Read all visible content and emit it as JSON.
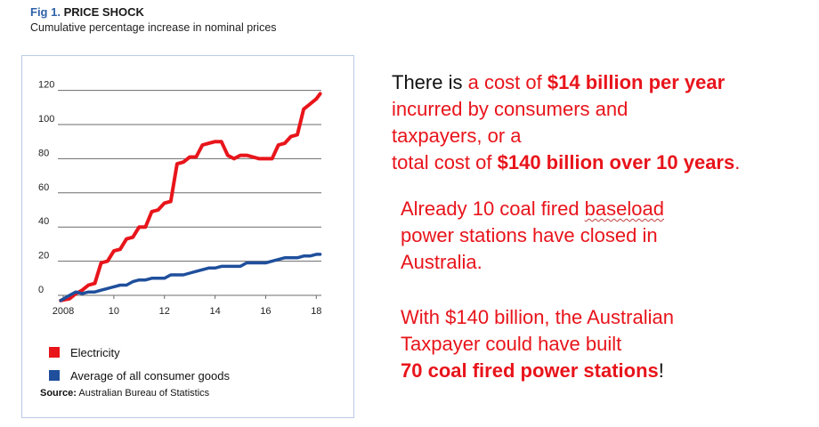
{
  "figure": {
    "fig_number": "Fig 1.",
    "title": "PRICE SHOCK",
    "subtitle": "Cumulative percentage increase in nominal prices",
    "source_label": "Source:",
    "source_text": "Australian Bureau of Statistics"
  },
  "chart_data": {
    "type": "line",
    "xlim": [
      2008,
      2018.2
    ],
    "ylim": [
      0,
      125
    ],
    "y_ticks": [
      0,
      20,
      40,
      60,
      80,
      100,
      120
    ],
    "x_ticks": [
      2008,
      2010,
      2012,
      2014,
      2016,
      2018
    ],
    "x_tick_labels": [
      "2008",
      "10",
      "12",
      "14",
      "16",
      "18"
    ],
    "grid": true,
    "legend_position": "bottom-left",
    "series": [
      {
        "name": "Electricity",
        "color": "#e8151b",
        "points": [
          [
            2007.9,
            -3
          ],
          [
            2008.25,
            -2
          ],
          [
            2008.5,
            1
          ],
          [
            2008.75,
            3
          ],
          [
            2009.0,
            6
          ],
          [
            2009.25,
            7
          ],
          [
            2009.5,
            19
          ],
          [
            2009.75,
            20
          ],
          [
            2010.0,
            26
          ],
          [
            2010.25,
            27
          ],
          [
            2010.5,
            33
          ],
          [
            2010.75,
            34
          ],
          [
            2011.0,
            40
          ],
          [
            2011.25,
            40
          ],
          [
            2011.5,
            49
          ],
          [
            2011.75,
            50
          ],
          [
            2012.0,
            54
          ],
          [
            2012.25,
            55
          ],
          [
            2012.5,
            77
          ],
          [
            2012.75,
            78
          ],
          [
            2013.0,
            81
          ],
          [
            2013.25,
            81
          ],
          [
            2013.5,
            88
          ],
          [
            2013.75,
            89
          ],
          [
            2014.0,
            90
          ],
          [
            2014.25,
            90
          ],
          [
            2014.5,
            82
          ],
          [
            2014.75,
            80
          ],
          [
            2015.0,
            82
          ],
          [
            2015.25,
            82
          ],
          [
            2015.5,
            81
          ],
          [
            2015.75,
            80
          ],
          [
            2016.0,
            80
          ],
          [
            2016.25,
            80
          ],
          [
            2016.5,
            88
          ],
          [
            2016.75,
            89
          ],
          [
            2017.0,
            93
          ],
          [
            2017.25,
            94
          ],
          [
            2017.5,
            109
          ],
          [
            2017.75,
            112
          ],
          [
            2018.0,
            115
          ],
          [
            2018.15,
            118
          ]
        ]
      },
      {
        "name": "Average of all consumer goods",
        "color": "#1f4f9c",
        "points": [
          [
            2007.9,
            -3
          ],
          [
            2008.25,
            0
          ],
          [
            2008.5,
            2
          ],
          [
            2008.75,
            1
          ],
          [
            2009.0,
            2
          ],
          [
            2009.25,
            2
          ],
          [
            2009.5,
            3
          ],
          [
            2009.75,
            4
          ],
          [
            2010.0,
            5
          ],
          [
            2010.25,
            6
          ],
          [
            2010.5,
            6
          ],
          [
            2010.75,
            8
          ],
          [
            2011.0,
            9
          ],
          [
            2011.25,
            9
          ],
          [
            2011.5,
            10
          ],
          [
            2011.75,
            10
          ],
          [
            2012.0,
            10
          ],
          [
            2012.25,
            12
          ],
          [
            2012.5,
            12
          ],
          [
            2012.75,
            12
          ],
          [
            2013.0,
            13
          ],
          [
            2013.25,
            14
          ],
          [
            2013.5,
            15
          ],
          [
            2013.75,
            16
          ],
          [
            2014.0,
            16
          ],
          [
            2014.25,
            17
          ],
          [
            2014.5,
            17
          ],
          [
            2014.75,
            17
          ],
          [
            2015.0,
            17
          ],
          [
            2015.25,
            19
          ],
          [
            2015.5,
            19
          ],
          [
            2015.75,
            19
          ],
          [
            2016.0,
            19
          ],
          [
            2016.25,
            20
          ],
          [
            2016.5,
            21
          ],
          [
            2016.75,
            22
          ],
          [
            2017.0,
            22
          ],
          [
            2017.25,
            22
          ],
          [
            2017.5,
            23
          ],
          [
            2017.75,
            23
          ],
          [
            2018.0,
            24
          ],
          [
            2018.15,
            24
          ]
        ]
      }
    ]
  },
  "message": {
    "p1": {
      "a": "There is",
      "b": " a cost of ",
      "c": "$14 billion per year",
      "d": "incurred by consumers and",
      "e": "taxpayers, or a",
      "f": "total cost of ",
      "g": "$140 billion over 10 years",
      "h": "."
    },
    "p2": {
      "a": "Already 10 coal fired ",
      "b": "baseload",
      "c": "power stations have closed in",
      "d": "Australia."
    },
    "p3": {
      "a": "With $140 billion, the Australian",
      "b": "Taxpayer could have built",
      "c": "70 coal fired power stations",
      "d": "!"
    }
  }
}
